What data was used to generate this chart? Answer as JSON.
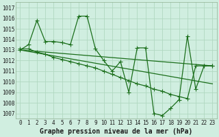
{
  "title": "Graphe pression niveau de la mer (hPa)",
  "background_color": "#d0eee0",
  "grid_color": "#b0d8c0",
  "line_color": "#1a6e1a",
  "xlim": [
    -0.5,
    23.5
  ],
  "ylim": [
    1006.5,
    1017.5
  ],
  "yticks": [
    1007,
    1008,
    1009,
    1010,
    1011,
    1012,
    1013,
    1014,
    1015,
    1016,
    1017
  ],
  "xticks": [
    0,
    1,
    2,
    3,
    4,
    5,
    6,
    7,
    8,
    9,
    10,
    11,
    12,
    13,
    14,
    15,
    16,
    17,
    18,
    19,
    20,
    21,
    22,
    23
  ],
  "series1_x": [
    0,
    1,
    2,
    3,
    4,
    5,
    6,
    7,
    8,
    9,
    10,
    11,
    12,
    13,
    14,
    15,
    16,
    17,
    18,
    19,
    20,
    21,
    22,
    23
  ],
  "series1_y": [
    1013.0,
    1013.5,
    1015.8,
    1013.8,
    1013.8,
    1013.7,
    1013.5,
    1016.2,
    1016.2,
    1013.1,
    1012.0,
    1011.0,
    1011.9,
    1009.0,
    1013.2,
    1013.2,
    1007.0,
    1006.8,
    1007.5,
    1008.3,
    1014.3,
    1009.3,
    1011.5,
    1011.5
  ],
  "series2_x": [
    0,
    1,
    2,
    3,
    4,
    5,
    6,
    7,
    8,
    9,
    10,
    11,
    12,
    13,
    14,
    15,
    16,
    17,
    18,
    19,
    20,
    21,
    22,
    23
  ],
  "series2_y": [
    1013.1,
    1013.1,
    1012.8,
    1012.6,
    1012.3,
    1012.1,
    1011.9,
    1011.7,
    1011.5,
    1011.3,
    1011.0,
    1010.7,
    1010.4,
    1010.1,
    1009.8,
    1009.6,
    1009.3,
    1009.1,
    1008.8,
    1008.6,
    1008.4,
    1011.5,
    1011.5,
    1011.5
  ],
  "trend1_x": [
    0,
    23
  ],
  "trend1_y": [
    1013.0,
    1009.8
  ],
  "trend2_x": [
    0,
    23
  ],
  "trend2_y": [
    1013.0,
    1011.5
  ],
  "marker_size": 4,
  "linewidth": 0.9,
  "xlabel_fontsize": 7,
  "tick_fontsize": 5.5,
  "ylabel_fontsize": 5.5
}
